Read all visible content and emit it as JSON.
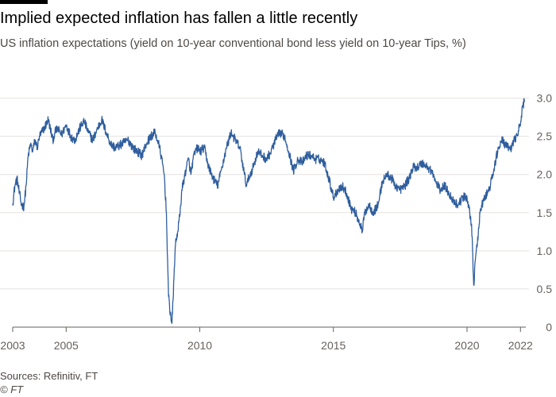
{
  "title": "Implied expected inflation has fallen a little recently",
  "subtitle": "US inflation expectations (yield on 10-year conventional bond less yield on 10-year Tips, %)",
  "source": "Sources: Refinitiv, FT",
  "credit": "© FT",
  "chart_data": {
    "type": "line",
    "title": "Implied expected inflation has fallen a little recently",
    "subtitle": "US inflation expectations (yield on 10-year conventional bond less yield on 10-year Tips, %)",
    "xlabel": "",
    "ylabel": "",
    "x_ticks": [
      "2003",
      "2005",
      "2010",
      "2015",
      "2020",
      "2022"
    ],
    "x_tick_values": [
      2003.0,
      2005.0,
      2010.0,
      2015.0,
      2020.0,
      2022.0
    ],
    "y_ticks": [
      "0",
      "0.5",
      "1.0",
      "1.5",
      "2.0",
      "2.5",
      "3.0"
    ],
    "y_tick_values": [
      0,
      0.5,
      1.0,
      1.5,
      2.0,
      2.5,
      3.0
    ],
    "xlim": [
      2003.0,
      2022.2
    ],
    "ylim": [
      0,
      3.1
    ],
    "grid": true,
    "y_axis_side": "right",
    "colors": {
      "line": "#2f5e9e",
      "grid": "#e6e3df",
      "axis": "#66605c",
      "tick_text": "#66605c"
    },
    "series": [
      {
        "color": "#2f5e9e",
        "x": [
          2003.0,
          2003.08,
          2003.16,
          2003.25,
          2003.33,
          2003.42,
          2003.5,
          2003.58,
          2003.67,
          2003.75,
          2003.83,
          2003.92,
          2004.0,
          2004.17,
          2004.33,
          2004.5,
          2004.58,
          2004.67,
          2004.83,
          2005.0,
          2005.17,
          2005.33,
          2005.5,
          2005.67,
          2005.83,
          2006.0,
          2006.17,
          2006.33,
          2006.5,
          2006.67,
          2006.83,
          2007.0,
          2007.17,
          2007.33,
          2007.5,
          2007.67,
          2007.83,
          2008.0,
          2008.17,
          2008.33,
          2008.5,
          2008.67,
          2008.75,
          2008.83,
          2008.92,
          2008.96,
          2009.0,
          2009.08,
          2009.17,
          2009.25,
          2009.33,
          2009.42,
          2009.5,
          2009.58,
          2009.67,
          2009.75,
          2009.83,
          2009.92,
          2010.0,
          2010.17,
          2010.33,
          2010.5,
          2010.67,
          2010.83,
          2011.0,
          2011.17,
          2011.33,
          2011.5,
          2011.67,
          2011.75,
          2011.83,
          2012.0,
          2012.17,
          2012.33,
          2012.5,
          2012.67,
          2012.83,
          2013.0,
          2013.17,
          2013.33,
          2013.5,
          2013.67,
          2013.83,
          2014.0,
          2014.17,
          2014.33,
          2014.5,
          2014.67,
          2014.83,
          2015.0,
          2015.17,
          2015.33,
          2015.5,
          2015.67,
          2015.83,
          2016.0,
          2016.08,
          2016.17,
          2016.33,
          2016.5,
          2016.67,
          2016.83,
          2017.0,
          2017.17,
          2017.33,
          2017.5,
          2017.67,
          2017.83,
          2018.0,
          2018.17,
          2018.33,
          2018.5,
          2018.67,
          2018.83,
          2019.0,
          2019.17,
          2019.33,
          2019.5,
          2019.67,
          2019.83,
          2020.0,
          2020.08,
          2020.17,
          2020.25,
          2020.33,
          2020.42,
          2020.5,
          2020.67,
          2020.83,
          2021.0,
          2021.17,
          2021.33,
          2021.5,
          2021.67,
          2021.83,
          2022.0,
          2022.08,
          2022.15
        ],
        "y": [
          1.62,
          1.85,
          1.95,
          1.75,
          1.6,
          1.58,
          1.85,
          2.25,
          2.4,
          2.3,
          2.45,
          2.35,
          2.5,
          2.6,
          2.72,
          2.45,
          2.55,
          2.6,
          2.52,
          2.65,
          2.5,
          2.45,
          2.6,
          2.7,
          2.55,
          2.45,
          2.6,
          2.72,
          2.55,
          2.4,
          2.35,
          2.38,
          2.42,
          2.45,
          2.35,
          2.3,
          2.25,
          2.4,
          2.5,
          2.55,
          2.35,
          2.0,
          1.5,
          0.4,
          0.12,
          0.05,
          0.35,
          1.05,
          1.25,
          1.45,
          1.8,
          1.95,
          2.1,
          2.2,
          2.0,
          2.2,
          2.3,
          2.35,
          2.3,
          2.35,
          2.1,
          1.95,
          1.85,
          2.1,
          2.35,
          2.55,
          2.45,
          2.35,
          2.0,
          1.85,
          1.95,
          2.1,
          2.3,
          2.25,
          2.2,
          2.3,
          2.45,
          2.55,
          2.5,
          2.3,
          2.05,
          2.2,
          2.15,
          2.25,
          2.25,
          2.2,
          2.2,
          2.15,
          1.95,
          1.7,
          1.8,
          1.85,
          1.75,
          1.55,
          1.5,
          1.35,
          1.25,
          1.5,
          1.6,
          1.5,
          1.6,
          1.9,
          2.0,
          1.95,
          1.85,
          1.8,
          1.85,
          1.95,
          2.1,
          2.1,
          2.15,
          2.1,
          2.05,
          1.9,
          1.8,
          1.85,
          1.75,
          1.65,
          1.6,
          1.7,
          1.7,
          1.55,
          1.35,
          0.55,
          0.95,
          1.2,
          1.55,
          1.7,
          1.8,
          2.05,
          2.35,
          2.45,
          2.35,
          2.35,
          2.5,
          2.65,
          2.9,
          2.95
        ]
      }
    ]
  }
}
